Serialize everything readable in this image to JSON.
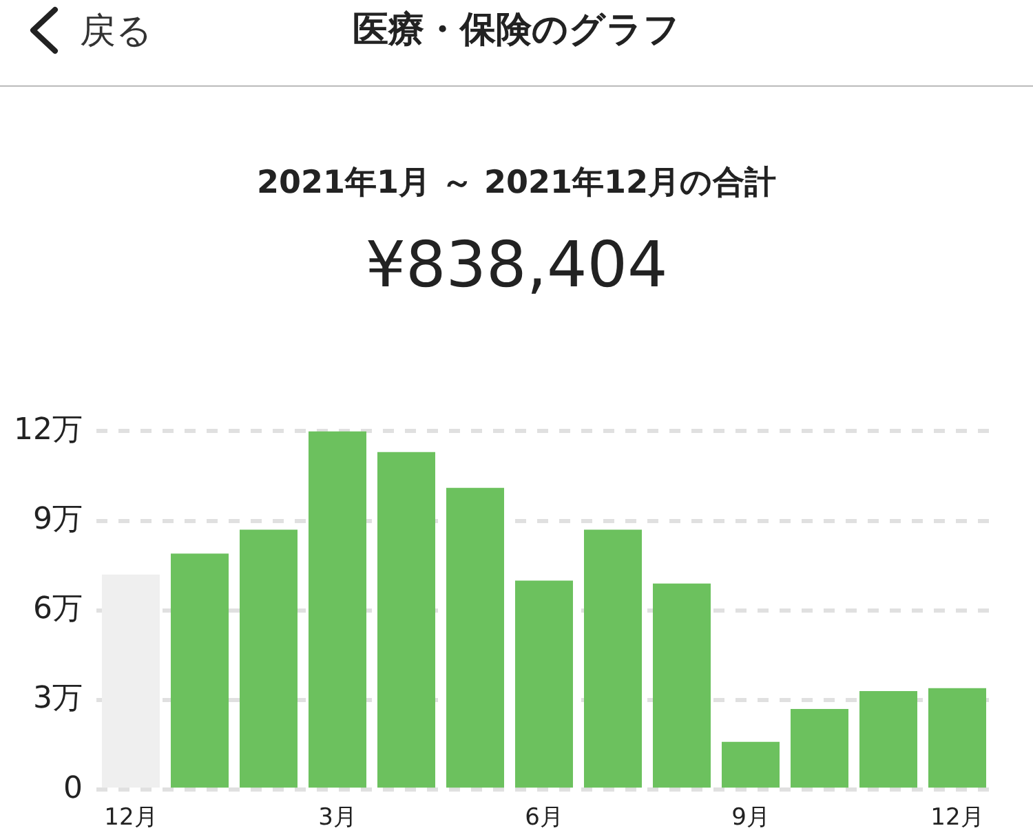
{
  "chart_data": {
    "type": "bar",
    "title": "医療・保険のグラフ",
    "subtitle": "2021年1月 ～ 2021年12月の合計",
    "annotations": [
      "戻る",
      "¥838,404"
    ],
    "categories": [
      "12月",
      null,
      null,
      "3月",
      null,
      null,
      "6月",
      null,
      null,
      "9月",
      null,
      null,
      "12月"
    ],
    "values": [
      7.2,
      7.9,
      8.7,
      12.0,
      11.3,
      10.1,
      7.0,
      8.7,
      6.9,
      1.6,
      2.7,
      3.3,
      3.4
    ],
    "colors": [
      "#efefef",
      "#6cc15e",
      "#6cc15e",
      "#6cc15e",
      "#6cc15e",
      "#6cc15e",
      "#6cc15e",
      "#6cc15e",
      "#6cc15e",
      "#6cc15e",
      "#6cc15e",
      "#6cc15e",
      "#6cc15e"
    ],
    "ylim": [
      0,
      12
    ],
    "yticks": [
      0,
      {
        "value": 3,
        "label": "3万"
      },
      {
        "value": 6,
        "label": "6万"
      },
      {
        "value": 9,
        "label": "9万"
      },
      {
        "value": 12,
        "label": "12万"
      }
    ],
    "grid": "y",
    "legend": false
  }
}
